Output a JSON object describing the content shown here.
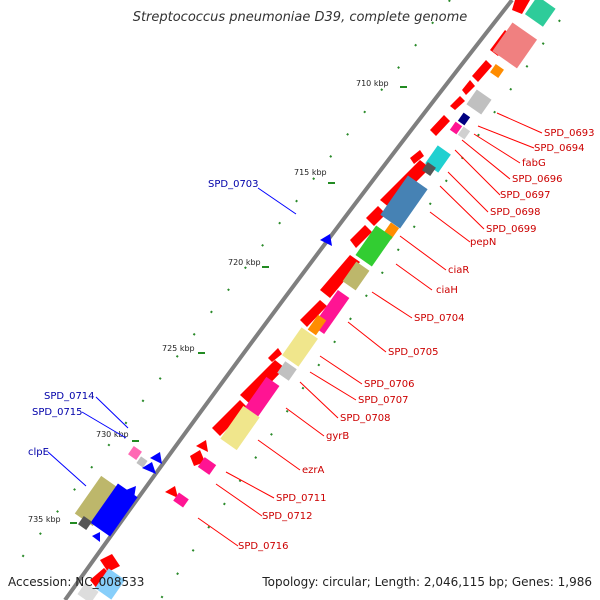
{
  "title": "Streptococcus pneumoniae D39, complete genome",
  "footer": {
    "accession_label": "Accession:",
    "accession": "NC_008533",
    "topology_text": "Topology: circular; Length: 2,046,115 bp; Genes: 1,986"
  },
  "colors": {
    "backbone": "#7f7f7f",
    "forward_gene": "#ff0000",
    "reverse_gene": "#0000ff",
    "label_forward": "#cc0000",
    "label_reverse": "#0000aa",
    "tick": "#228b22"
  },
  "scale_ticks": [
    "710 kbp",
    "715 kbp",
    "720 kbp",
    "725 kbp",
    "730 kbp",
    "735 kbp"
  ],
  "gene_labels_outer": [
    "SPD_0703",
    "SPD_0714",
    "SPD_0715",
    "clpE"
  ],
  "gene_labels_inner": [
    "SPD_0693",
    "SPD_0694",
    "fabG",
    "SPD_0696",
    "SPD_0697",
    "SPD_0698",
    "SPD_0699",
    "pepN",
    "ciaR",
    "ciaH",
    "SPD_0704",
    "SPD_0705",
    "SPD_0706",
    "SPD_0707",
    "SPD_0708",
    "gyrB",
    "ezrA",
    "SPD_0711",
    "SPD_0712",
    "SPD_0716"
  ]
}
